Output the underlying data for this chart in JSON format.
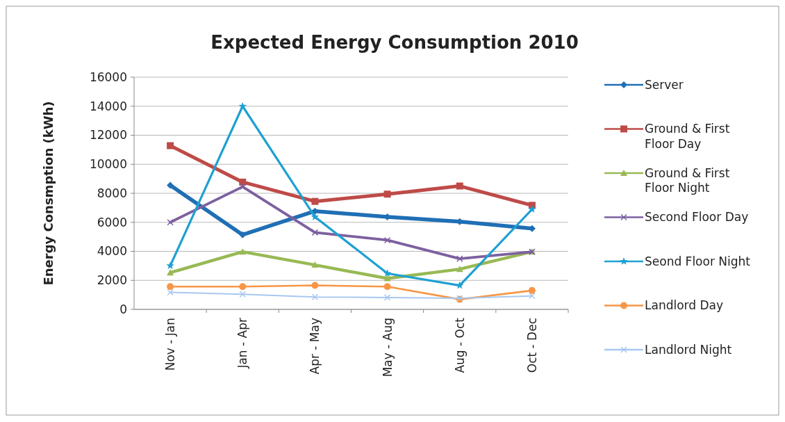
{
  "chart_data": {
    "type": "line",
    "title": "Expected Energy Consumption 2010",
    "ylabel": "Energy Consmption (kWh)",
    "categories": [
      "Nov - Jan",
      "Jan - Apr",
      "Apr - May",
      "May - Aug",
      "Aug - Oct",
      "Oct - Dec"
    ],
    "ylim": [
      0,
      16000
    ],
    "yticks": [
      0,
      2000,
      4000,
      6000,
      8000,
      10000,
      12000,
      14000,
      16000
    ],
    "grid": "y",
    "legend": "right",
    "series": [
      {
        "name": "Server",
        "color": "#1f6fb5",
        "marker": "diamond",
        "values": [
          8550,
          5140,
          6770,
          6370,
          6050,
          5570
        ]
      },
      {
        "name": "Ground & First Floor Day",
        "color": "#be4b48",
        "marker": "square",
        "values": [
          11280,
          8770,
          7440,
          7940,
          8500,
          7170
        ]
      },
      {
        "name": "Ground & First Floor Night",
        "color": "#98b954",
        "marker": "triangle",
        "values": [
          2530,
          3970,
          3060,
          2130,
          2770,
          3970
        ]
      },
      {
        "name": "Second Floor Day",
        "color": "#7d60a0",
        "marker": "cross",
        "values": [
          6000,
          8450,
          5300,
          4770,
          3490,
          3970
        ]
      },
      {
        "name": "Seond Floor Night",
        "color": "#1ea0d2",
        "marker": "star",
        "values": [
          3010,
          14000,
          6370,
          2480,
          1650,
          6900
        ]
      },
      {
        "name": "Landlord Day",
        "color": "#f79646",
        "marker": "circle",
        "values": [
          1570,
          1570,
          1650,
          1570,
          690,
          1300
        ]
      },
      {
        "name": "Landlord Night",
        "color": "#a8c8f0",
        "marker": "cross",
        "values": [
          1170,
          1040,
          850,
          820,
          770,
          930
        ]
      }
    ]
  }
}
